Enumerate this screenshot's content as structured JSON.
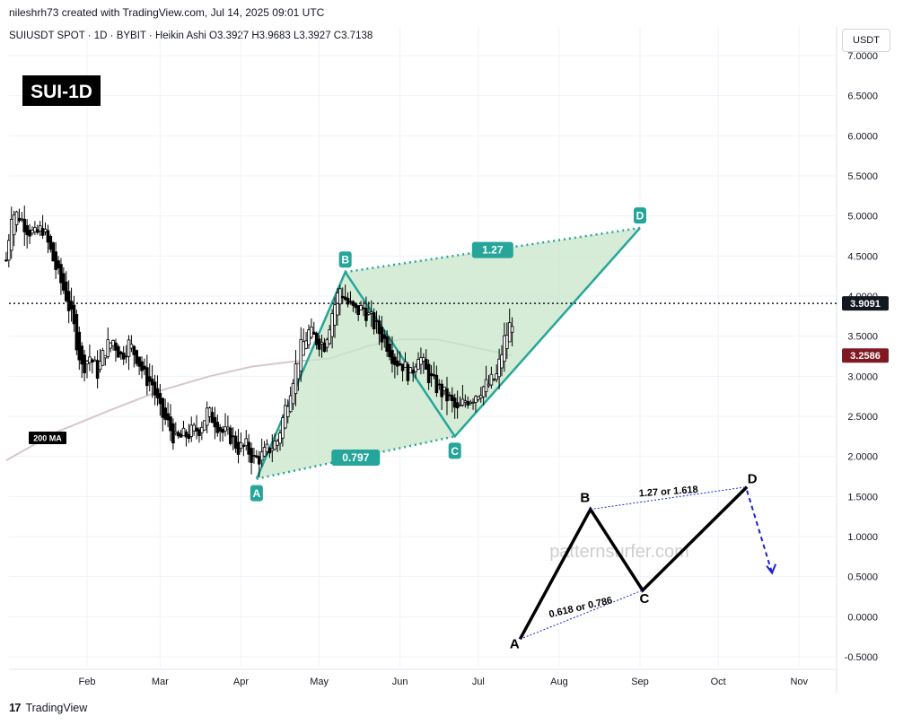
{
  "header": {
    "credit": "nileshrh73 created with TradingView.com, Jul 14, 2025 09:01 UTC",
    "legend": "SUIUSDT SPOT · 1D · BYBIT · Heikin Ashi  O3.3927  H3.9683  L3.3927  C3.7138",
    "currency": "USDT"
  },
  "footer": {
    "brand": "TradingView",
    "logo": "17"
  },
  "colors": {
    "pattern": "#26a69a",
    "pattern_fill": "#c8e6c9",
    "candle": "#000000",
    "ma": "#d8c7c7",
    "price_tag": "#131722",
    "ma_tag": "#801922",
    "schematic_dots": "#1a23d6"
  },
  "chart_data": {
    "type": "line",
    "title": "SUI-1D",
    "xlabel": "",
    "ylabel": "",
    "ylim": [
      -0.6,
      7.1
    ],
    "x_ticks": [
      "Feb",
      "Mar",
      "Apr",
      "May",
      "Jun",
      "Jul",
      "Aug",
      "Sep",
      "Oct",
      "Nov"
    ],
    "y_ticks": [
      "7.0000",
      "6.5000",
      "6.0000",
      "5.5000",
      "5.0000",
      "4.5000",
      "4.0000",
      "3.5000",
      "3.0000",
      "2.5000",
      "2.0000",
      "1.5000",
      "1.0000",
      "0.5000",
      "0.0000",
      "-0.5000"
    ],
    "grid": true,
    "current_price": {
      "value": 3.9091,
      "label": "3.9091"
    },
    "ma_price": {
      "value": 3.2586,
      "label": "3.2586"
    },
    "ma_label": "200 MA",
    "series": [
      {
        "name": "200 MA",
        "x": [
          "2025-01-01",
          "2025-01-20",
          "2025-02-10",
          "2025-03-01",
          "2025-03-20",
          "2025-04-05",
          "2025-04-20",
          "2025-05-05",
          "2025-05-20",
          "2025-06-01",
          "2025-06-15",
          "2025-07-01",
          "2025-07-14"
        ],
        "y": [
          1.95,
          2.3,
          2.58,
          2.82,
          3.0,
          3.12,
          3.18,
          3.22,
          3.38,
          3.46,
          3.46,
          3.35,
          3.26
        ]
      },
      {
        "name": "SUIUSDT",
        "x": [
          "2025-01-01",
          "2025-01-03",
          "2025-01-06",
          "2025-01-09",
          "2025-01-12",
          "2025-01-15",
          "2025-01-18",
          "2025-01-21",
          "2025-01-24",
          "2025-01-27",
          "2025-01-30",
          "2025-02-02",
          "2025-02-05",
          "2025-02-08",
          "2025-02-11",
          "2025-02-14",
          "2025-02-17",
          "2025-02-20",
          "2025-02-23",
          "2025-02-26",
          "2025-03-01",
          "2025-03-04",
          "2025-03-07",
          "2025-03-10",
          "2025-03-13",
          "2025-03-16",
          "2025-03-19",
          "2025-03-22",
          "2025-03-25",
          "2025-03-28",
          "2025-03-31",
          "2025-04-03",
          "2025-04-06",
          "2025-04-09",
          "2025-04-12",
          "2025-04-15",
          "2025-04-18",
          "2025-04-21",
          "2025-04-24",
          "2025-04-27",
          "2025-04-30",
          "2025-05-03",
          "2025-05-06",
          "2025-05-09",
          "2025-05-12",
          "2025-05-15",
          "2025-05-18",
          "2025-05-21",
          "2025-05-24",
          "2025-05-27",
          "2025-05-30",
          "2025-06-02",
          "2025-06-05",
          "2025-06-08",
          "2025-06-11",
          "2025-06-14",
          "2025-06-17",
          "2025-06-20",
          "2025-06-23",
          "2025-06-26",
          "2025-06-29",
          "2025-07-02",
          "2025-07-05",
          "2025-07-08",
          "2025-07-11",
          "2025-07-14"
        ],
        "y": [
          4.45,
          5.05,
          5.0,
          4.85,
          4.75,
          4.85,
          4.55,
          4.25,
          4.0,
          3.6,
          3.1,
          3.25,
          3.05,
          3.35,
          3.45,
          3.25,
          3.4,
          3.25,
          3.0,
          2.9,
          2.55,
          2.4,
          2.2,
          2.25,
          2.3,
          2.35,
          2.55,
          2.45,
          2.3,
          2.25,
          2.1,
          2.12,
          1.95,
          2.0,
          2.1,
          2.2,
          2.6,
          3.0,
          3.35,
          3.55,
          3.45,
          3.4,
          3.8,
          4.1,
          3.9,
          3.8,
          3.85,
          3.7,
          3.55,
          3.4,
          3.2,
          3.15,
          3.0,
          3.3,
          3.05,
          2.9,
          2.8,
          2.7,
          2.55,
          2.7,
          2.75,
          2.85,
          2.9,
          3.0,
          3.45,
          3.71
        ]
      }
    ],
    "harmonic_pattern": {
      "points": [
        {
          "label": "A",
          "date": "2025-04-07",
          "price": 1.72
        },
        {
          "label": "B",
          "date": "2025-05-11",
          "price": 4.3
        },
        {
          "label": "C",
          "date": "2025-06-22",
          "price": 2.25
        },
        {
          "label": "D",
          "date": "2025-09-01",
          "price": 4.85
        }
      ],
      "ratios": [
        {
          "label": "1.27",
          "between": "B-D"
        },
        {
          "label": "0.797",
          "between": "A-C"
        }
      ]
    },
    "schematic": {
      "points": [
        {
          "label": "A",
          "date": "2025-07-17",
          "price": -0.28
        },
        {
          "label": "B",
          "date": "2025-08-13",
          "price": 1.34
        },
        {
          "label": "C",
          "date": "2025-09-02",
          "price": 0.33
        },
        {
          "label": "D",
          "date": "2025-10-12",
          "price": 1.62
        }
      ],
      "ratio_labels": [
        "1.27 or 1.618",
        "0.618 or 0.786"
      ],
      "watermark": "patternsurfer.com"
    }
  }
}
